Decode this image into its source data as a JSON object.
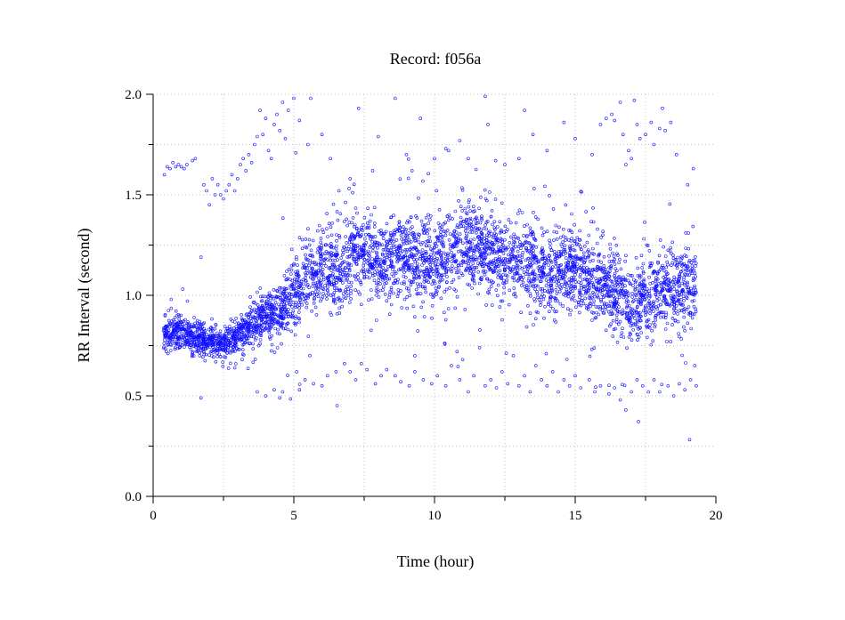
{
  "chart_data": {
    "type": "scatter",
    "title": "Record:  f056a",
    "xlabel": "Time (hour)",
    "ylabel": "RR Interval (second)",
    "xlim": [
      0,
      20
    ],
    "ylim": [
      0,
      2
    ],
    "x_ticks": [
      "0",
      "5",
      "10",
      "15",
      "20"
    ],
    "x_tick_values": [
      0,
      5,
      10,
      15,
      20
    ],
    "y_ticks": [
      "0.0",
      "0.5",
      "1.0",
      "1.5",
      "2.0"
    ],
    "y_tick_values": [
      0,
      0.5,
      1.0,
      1.5,
      2.0
    ],
    "grid": true,
    "marker_color": "#1010ff",
    "series": [
      {
        "trend": [
          [
            0.35,
            0.81,
            0.04
          ],
          [
            1.0,
            0.82,
            0.045
          ],
          [
            1.5,
            0.8,
            0.04
          ],
          [
            2.0,
            0.77,
            0.035
          ],
          [
            2.5,
            0.76,
            0.035
          ],
          [
            3.0,
            0.8,
            0.045
          ],
          [
            3.5,
            0.86,
            0.05
          ],
          [
            4.0,
            0.9,
            0.06
          ],
          [
            4.5,
            0.92,
            0.06
          ],
          [
            4.9,
            1.0,
            0.1
          ],
          [
            5.5,
            1.1,
            0.1
          ],
          [
            6.0,
            1.12,
            0.1
          ],
          [
            6.5,
            1.1,
            0.1
          ],
          [
            7.0,
            1.18,
            0.1
          ],
          [
            7.5,
            1.2,
            0.1
          ],
          [
            8.0,
            1.18,
            0.1
          ],
          [
            8.5,
            1.17,
            0.1
          ],
          [
            9.0,
            1.2,
            0.1
          ],
          [
            9.5,
            1.17,
            0.1
          ],
          [
            10.0,
            1.15,
            0.09
          ],
          [
            10.5,
            1.22,
            0.11
          ],
          [
            11.0,
            1.24,
            0.11
          ],
          [
            11.5,
            1.22,
            0.1
          ],
          [
            12.0,
            1.2,
            0.1
          ],
          [
            12.5,
            1.18,
            0.1
          ],
          [
            13.0,
            1.15,
            0.1
          ],
          [
            13.5,
            1.17,
            0.12
          ],
          [
            14.0,
            1.08,
            0.1
          ],
          [
            14.5,
            1.12,
            0.1
          ],
          [
            15.0,
            1.15,
            0.09
          ],
          [
            15.5,
            1.08,
            0.09
          ],
          [
            16.0,
            1.05,
            0.09
          ],
          [
            16.5,
            1.02,
            0.1
          ],
          [
            17.0,
            0.92,
            0.09
          ],
          [
            17.5,
            0.98,
            0.09
          ],
          [
            18.0,
            1.02,
            0.1
          ],
          [
            18.5,
            1.03,
            0.09
          ],
          [
            19.0,
            1.05,
            0.09
          ],
          [
            19.3,
            1.05,
            0.08
          ]
        ],
        "outliers": [
          [
            0.4,
            1.6
          ],
          [
            0.5,
            1.64
          ],
          [
            0.6,
            1.63
          ],
          [
            0.7,
            1.66
          ],
          [
            0.8,
            1.64
          ],
          [
            0.9,
            1.65
          ],
          [
            1.0,
            1.64
          ],
          [
            1.1,
            1.63
          ],
          [
            1.2,
            1.65
          ],
          [
            1.4,
            1.67
          ],
          [
            1.5,
            1.68
          ],
          [
            1.7,
            1.19
          ],
          [
            1.8,
            1.55
          ],
          [
            1.9,
            1.52
          ],
          [
            2.0,
            1.45
          ],
          [
            2.1,
            1.58
          ],
          [
            2.2,
            1.5
          ],
          [
            2.3,
            1.55
          ],
          [
            2.4,
            1.5
          ],
          [
            2.5,
            1.48
          ],
          [
            2.6,
            1.52
          ],
          [
            2.7,
            1.55
          ],
          [
            2.8,
            1.6
          ],
          [
            2.9,
            1.52
          ],
          [
            3.0,
            1.58
          ],
          [
            3.1,
            1.65
          ],
          [
            3.2,
            1.68
          ],
          [
            3.3,
            1.62
          ],
          [
            3.4,
            1.7
          ],
          [
            3.5,
            1.66
          ],
          [
            3.6,
            1.75
          ],
          [
            3.7,
            1.79
          ],
          [
            3.8,
            1.92
          ],
          [
            3.9,
            1.8
          ],
          [
            4.0,
            1.88
          ],
          [
            4.1,
            1.72
          ],
          [
            4.2,
            1.68
          ],
          [
            4.3,
            1.85
          ],
          [
            4.4,
            1.9
          ],
          [
            4.5,
            1.82
          ],
          [
            4.6,
            1.96
          ],
          [
            4.7,
            1.78
          ],
          [
            4.8,
            1.92
          ],
          [
            5.0,
            1.98
          ],
          [
            5.2,
            1.87
          ],
          [
            5.5,
            1.75
          ],
          [
            5.6,
            1.98
          ],
          [
            6.0,
            1.8
          ],
          [
            6.3,
            1.68
          ],
          [
            6.6,
            1.52
          ],
          [
            7.0,
            1.58
          ],
          [
            7.3,
            1.93
          ],
          [
            7.8,
            1.62
          ],
          [
            8.0,
            1.79
          ],
          [
            8.6,
            1.98
          ],
          [
            9.0,
            1.7
          ],
          [
            9.2,
            1.62
          ],
          [
            9.5,
            1.88
          ],
          [
            10.0,
            1.68
          ],
          [
            10.5,
            1.72
          ],
          [
            10.9,
            1.77
          ],
          [
            11.2,
            1.68
          ],
          [
            11.8,
            1.99
          ],
          [
            11.9,
            1.85
          ],
          [
            12.5,
            1.65
          ],
          [
            13.0,
            1.68
          ],
          [
            13.2,
            1.92
          ],
          [
            13.5,
            1.8
          ],
          [
            14.0,
            1.72
          ],
          [
            14.6,
            1.86
          ],
          [
            15.0,
            1.78
          ],
          [
            15.6,
            1.7
          ],
          [
            15.9,
            1.85
          ],
          [
            16.1,
            1.88
          ],
          [
            16.3,
            1.9
          ],
          [
            16.4,
            1.87
          ],
          [
            16.6,
            1.96
          ],
          [
            16.7,
            1.8
          ],
          [
            16.8,
            1.65
          ],
          [
            16.9,
            1.72
          ],
          [
            17.0,
            1.68
          ],
          [
            17.1,
            1.97
          ],
          [
            17.2,
            1.85
          ],
          [
            17.3,
            1.78
          ],
          [
            17.5,
            1.8
          ],
          [
            17.7,
            1.86
          ],
          [
            17.8,
            1.75
          ],
          [
            18.0,
            1.83
          ],
          [
            18.1,
            1.93
          ],
          [
            18.2,
            1.82
          ],
          [
            18.4,
            1.86
          ],
          [
            18.6,
            1.7
          ],
          [
            19.0,
            1.55
          ],
          [
            19.2,
            1.63
          ],
          [
            1.7,
            0.49
          ],
          [
            3.7,
            0.52
          ],
          [
            4.0,
            0.5
          ],
          [
            4.3,
            0.53
          ],
          [
            4.5,
            0.49
          ],
          [
            4.6,
            0.52
          ],
          [
            5.1,
            0.62
          ],
          [
            5.2,
            0.53
          ],
          [
            5.4,
            0.58
          ],
          [
            5.7,
            0.56
          ],
          [
            6.0,
            0.55
          ],
          [
            6.2,
            0.6
          ],
          [
            6.5,
            0.62
          ],
          [
            6.8,
            0.66
          ],
          [
            7.0,
            0.62
          ],
          [
            7.2,
            0.58
          ],
          [
            7.4,
            0.66
          ],
          [
            7.6,
            0.63
          ],
          [
            7.9,
            0.56
          ],
          [
            8.1,
            0.6
          ],
          [
            8.3,
            0.63
          ],
          [
            8.6,
            0.6
          ],
          [
            8.8,
            0.57
          ],
          [
            9.1,
            0.55
          ],
          [
            9.3,
            0.62
          ],
          [
            9.6,
            0.58
          ],
          [
            9.9,
            0.56
          ],
          [
            10.1,
            0.6
          ],
          [
            10.4,
            0.55
          ],
          [
            10.6,
            0.65
          ],
          [
            10.8,
            0.72
          ],
          [
            10.9,
            0.58
          ],
          [
            11.0,
            0.68
          ],
          [
            11.2,
            0.52
          ],
          [
            11.4,
            0.6
          ],
          [
            11.6,
            0.74
          ],
          [
            11.8,
            0.55
          ],
          [
            12.0,
            0.58
          ],
          [
            12.2,
            0.54
          ],
          [
            12.4,
            0.62
          ],
          [
            12.6,
            0.56
          ],
          [
            12.8,
            0.7
          ],
          [
            13.0,
            0.55
          ],
          [
            13.2,
            0.6
          ],
          [
            13.4,
            0.52
          ],
          [
            13.6,
            0.65
          ],
          [
            13.8,
            0.58
          ],
          [
            14.0,
            0.55
          ],
          [
            14.2,
            0.62
          ],
          [
            14.4,
            0.52
          ],
          [
            14.6,
            0.58
          ],
          [
            14.8,
            0.55
          ],
          [
            15.0,
            0.6
          ],
          [
            15.2,
            0.54
          ],
          [
            15.5,
            0.58
          ],
          [
            15.7,
            0.52
          ],
          [
            15.9,
            0.55
          ],
          [
            16.2,
            0.51
          ],
          [
            16.4,
            0.54
          ],
          [
            16.6,
            0.48
          ],
          [
            16.8,
            0.43
          ],
          [
            17.0,
            0.52
          ],
          [
            17.2,
            0.58
          ],
          [
            17.4,
            0.55
          ],
          [
            17.6,
            0.52
          ],
          [
            17.8,
            0.58
          ],
          [
            18.0,
            0.52
          ],
          [
            18.3,
            0.55
          ],
          [
            18.5,
            0.5
          ],
          [
            18.7,
            0.56
          ],
          [
            18.9,
            0.53
          ],
          [
            19.1,
            0.58
          ],
          [
            19.25,
            0.65
          ],
          [
            19.3,
            0.55
          ]
        ],
        "x_range": [
          0.35,
          19.3
        ]
      }
    ]
  }
}
